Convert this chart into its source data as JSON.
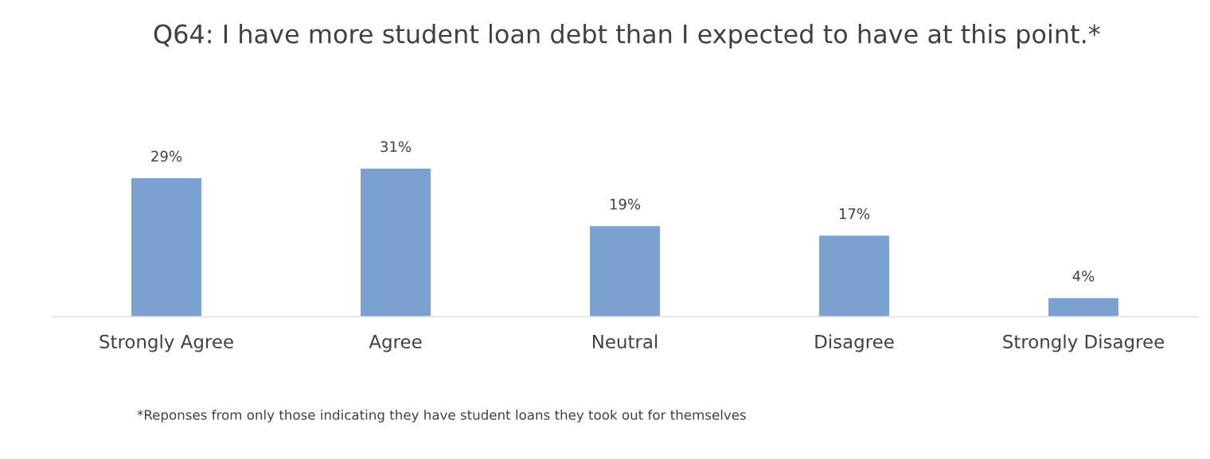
{
  "chart_data": {
    "type": "bar",
    "title": "Q64: I have more student loan debt than I expected to have at this point.*",
    "categories": [
      "Strongly Agree",
      "Agree",
      "Neutral",
      "Disagree",
      "Strongly Disagree"
    ],
    "values": [
      29,
      31,
      19,
      17,
      4
    ],
    "value_labels": [
      "29%",
      "31%",
      "19%",
      "17%",
      "4%"
    ],
    "color": "#7ba1d0",
    "grid": false,
    "legend": false,
    "annotations": [
      "*Reponses from only those indicating they have student loans they took out for themselves"
    ]
  }
}
